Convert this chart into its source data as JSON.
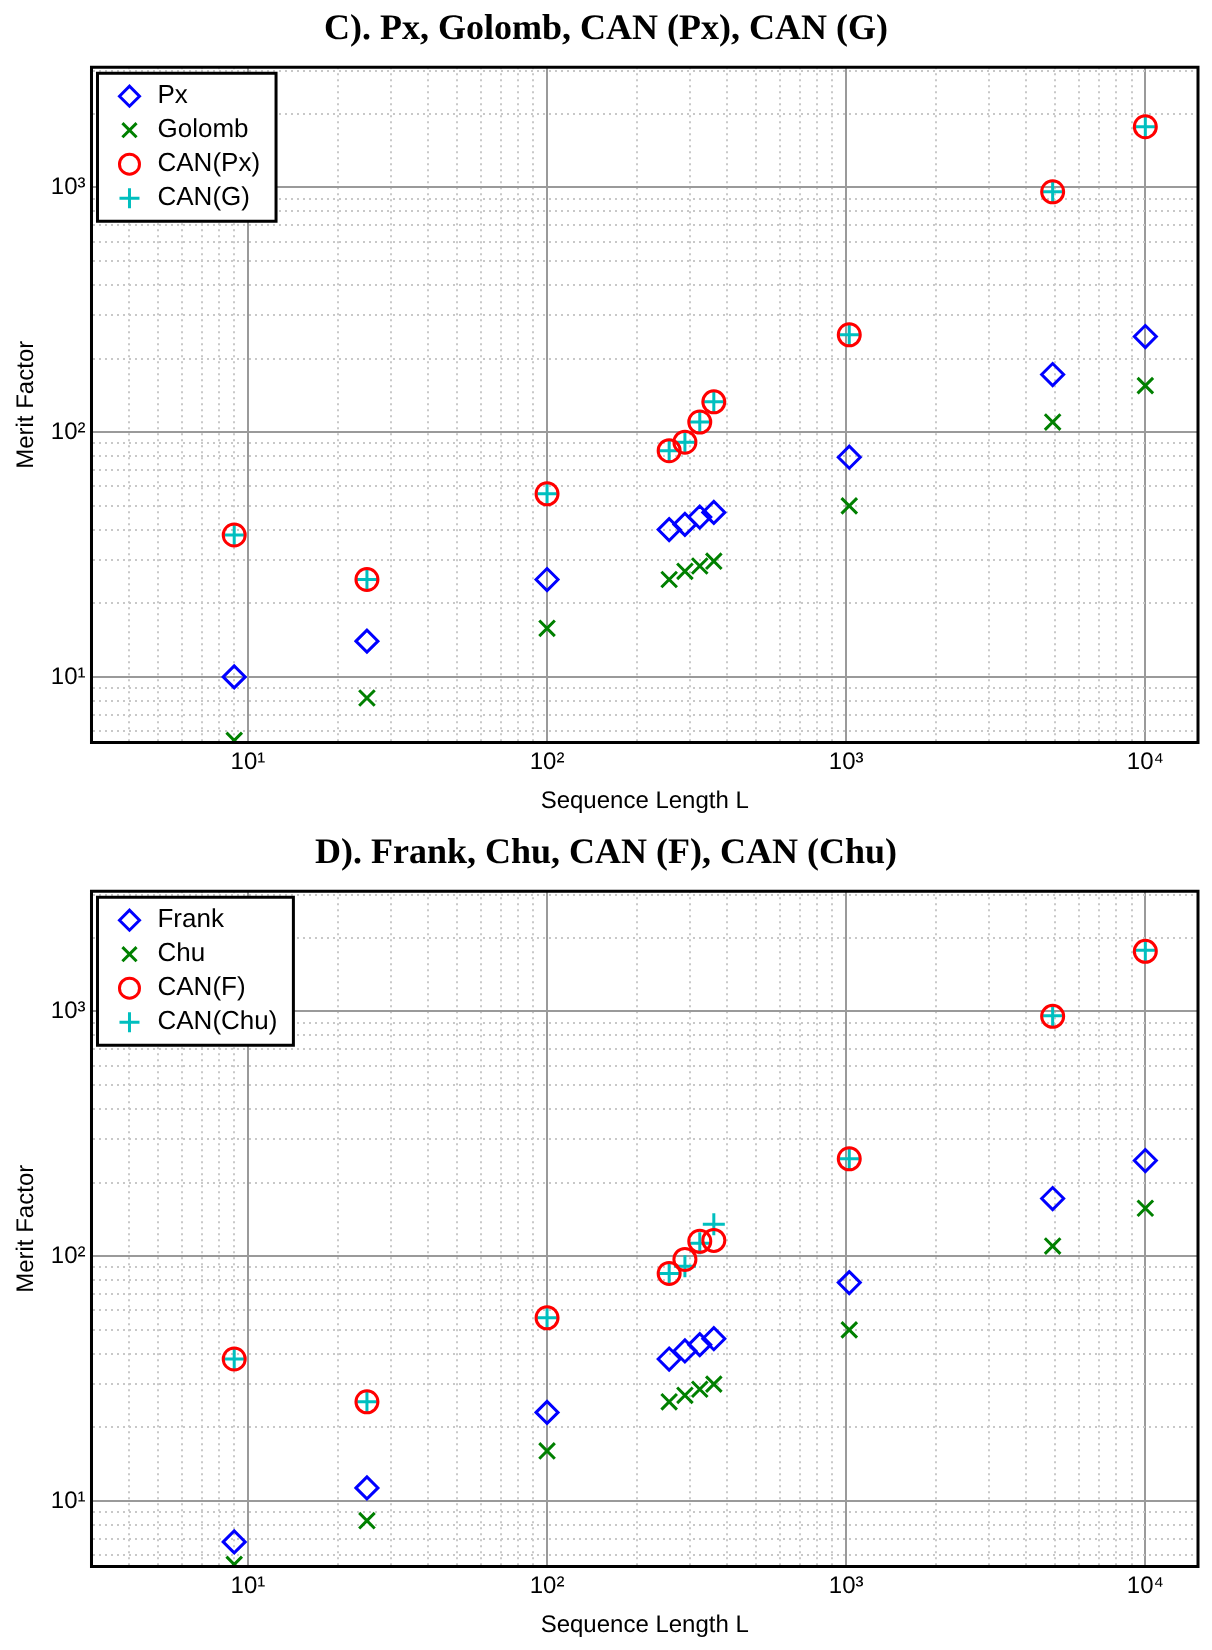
{
  "chart_data": [
    {
      "type": "scatter",
      "title": "C). Px, Golomb, CAN (Px), CAN (G)",
      "xlabel": "Sequence Length L",
      "ylabel": "Merit Factor",
      "log": "xy",
      "grid": true,
      "legend": "top left",
      "x": [
        9,
        25,
        100,
        256,
        289,
        324,
        361,
        1024,
        4900,
        10000
      ],
      "xlim": [
        3,
        15000
      ],
      "xticks": [
        {
          "value": 4,
          "label": null
        },
        {
          "value": 5,
          "label": null
        },
        {
          "value": 6,
          "label": null
        },
        {
          "value": 7,
          "label": null
        },
        {
          "value": 8,
          "label": null
        },
        {
          "value": 9,
          "label": null
        },
        {
          "value": 10,
          "label": "10¹"
        },
        {
          "value": 20,
          "label": null
        },
        {
          "value": 30,
          "label": null
        },
        {
          "value": 40,
          "label": null
        },
        {
          "value": 50,
          "label": null
        },
        {
          "value": 60,
          "label": null
        },
        {
          "value": 70,
          "label": null
        },
        {
          "value": 80,
          "label": null
        },
        {
          "value": 90,
          "label": null
        },
        {
          "value": 100,
          "label": "10²"
        },
        {
          "value": 200,
          "label": null
        },
        {
          "value": 300,
          "label": null
        },
        {
          "value": 400,
          "label": null
        },
        {
          "value": 500,
          "label": null
        },
        {
          "value": 600,
          "label": null
        },
        {
          "value": 700,
          "label": null
        },
        {
          "value": 800,
          "label": null
        },
        {
          "value": 900,
          "label": null
        },
        {
          "value": 1000,
          "label": "10³"
        },
        {
          "value": 2000,
          "label": null
        },
        {
          "value": 3000,
          "label": null
        },
        {
          "value": 4000,
          "label": null
        },
        {
          "value": 5000,
          "label": null
        },
        {
          "value": 6000,
          "label": null
        },
        {
          "value": 7000,
          "label": null
        },
        {
          "value": 8000,
          "label": null
        },
        {
          "value": 9000,
          "label": null
        },
        {
          "value": 10000,
          "label": "10⁴"
        }
      ],
      "ylim": [
        5.4,
        3100
      ],
      "yticks": [
        {
          "value": 6,
          "label": null
        },
        {
          "value": 7,
          "label": null
        },
        {
          "value": 8,
          "label": null
        },
        {
          "value": 9,
          "label": null
        },
        {
          "value": 10,
          "label": "10¹"
        },
        {
          "value": 20,
          "label": null
        },
        {
          "value": 30,
          "label": null
        },
        {
          "value": 40,
          "label": null
        },
        {
          "value": 50,
          "label": null
        },
        {
          "value": 60,
          "label": null
        },
        {
          "value": 70,
          "label": null
        },
        {
          "value": 80,
          "label": null
        },
        {
          "value": 90,
          "label": null
        },
        {
          "value": 100,
          "label": "10²"
        },
        {
          "value": 200,
          "label": null
        },
        {
          "value": 300,
          "label": null
        },
        {
          "value": 400,
          "label": null
        },
        {
          "value": 500,
          "label": null
        },
        {
          "value": 600,
          "label": null
        },
        {
          "value": 700,
          "label": null
        },
        {
          "value": 800,
          "label": null
        },
        {
          "value": 900,
          "label": null
        },
        {
          "value": 1000,
          "label": "10³"
        },
        {
          "value": 2000,
          "label": null
        },
        {
          "value": 3000,
          "label": null
        }
      ],
      "series": [
        {
          "name": "Px",
          "color": "#0000ff",
          "marker": "diamond",
          "values": [
            10,
            14,
            25,
            40,
            42,
            45,
            47,
            79,
            172,
            246
          ]
        },
        {
          "name": "Golomb",
          "color": "#008000",
          "marker": "x",
          "values": [
            5.5,
            8.2,
            15.8,
            25,
            27,
            28.4,
            29.7,
            50,
            110,
            155
          ]
        },
        {
          "name": "CAN(Px)",
          "color": "#ff0000",
          "marker": "circle",
          "values": [
            38,
            25,
            56,
            84,
            91,
            110,
            133,
            250,
            960,
            1770
          ]
        },
        {
          "name": "CAN(G)",
          "color": "#00bfbf",
          "marker": "cross",
          "values": [
            38,
            25,
            56,
            84,
            91,
            110,
            133,
            250,
            960,
            1770
          ]
        }
      ]
    },
    {
      "type": "scatter",
      "title": "D). Frank, Chu, CAN (F), CAN (Chu)",
      "xlabel": "Sequence Length L",
      "ylabel": "Merit Factor",
      "log": "xy",
      "grid": true,
      "legend": "top left",
      "x": [
        9,
        25,
        100,
        256,
        289,
        324,
        361,
        1024,
        4900,
        10000
      ],
      "xlim": [
        3,
        15000
      ],
      "xticks": [
        {
          "value": 4,
          "label": null
        },
        {
          "value": 5,
          "label": null
        },
        {
          "value": 6,
          "label": null
        },
        {
          "value": 7,
          "label": null
        },
        {
          "value": 8,
          "label": null
        },
        {
          "value": 9,
          "label": null
        },
        {
          "value": 10,
          "label": "10¹"
        },
        {
          "value": 20,
          "label": null
        },
        {
          "value": 30,
          "label": null
        },
        {
          "value": 40,
          "label": null
        },
        {
          "value": 50,
          "label": null
        },
        {
          "value": 60,
          "label": null
        },
        {
          "value": 70,
          "label": null
        },
        {
          "value": 80,
          "label": null
        },
        {
          "value": 90,
          "label": null
        },
        {
          "value": 100,
          "label": "10²"
        },
        {
          "value": 200,
          "label": null
        },
        {
          "value": 300,
          "label": null
        },
        {
          "value": 400,
          "label": null
        },
        {
          "value": 500,
          "label": null
        },
        {
          "value": 600,
          "label": null
        },
        {
          "value": 700,
          "label": null
        },
        {
          "value": 800,
          "label": null
        },
        {
          "value": 900,
          "label": null
        },
        {
          "value": 1000,
          "label": "10³"
        },
        {
          "value": 2000,
          "label": null
        },
        {
          "value": 3000,
          "label": null
        },
        {
          "value": 4000,
          "label": null
        },
        {
          "value": 5000,
          "label": null
        },
        {
          "value": 6000,
          "label": null
        },
        {
          "value": 7000,
          "label": null
        },
        {
          "value": 8000,
          "label": null
        },
        {
          "value": 9000,
          "label": null
        },
        {
          "value": 10000,
          "label": "10⁴"
        }
      ],
      "ylim": [
        5.4,
        3100
      ],
      "yticks": [
        {
          "value": 6,
          "label": null
        },
        {
          "value": 7,
          "label": null
        },
        {
          "value": 8,
          "label": null
        },
        {
          "value": 9,
          "label": null
        },
        {
          "value": 10,
          "label": "10¹"
        },
        {
          "value": 20,
          "label": null
        },
        {
          "value": 30,
          "label": null
        },
        {
          "value": 40,
          "label": null
        },
        {
          "value": 50,
          "label": null
        },
        {
          "value": 60,
          "label": null
        },
        {
          "value": 70,
          "label": null
        },
        {
          "value": 80,
          "label": null
        },
        {
          "value": 90,
          "label": null
        },
        {
          "value": 100,
          "label": "10²"
        },
        {
          "value": 200,
          "label": null
        },
        {
          "value": 300,
          "label": null
        },
        {
          "value": 400,
          "label": null
        },
        {
          "value": 500,
          "label": null
        },
        {
          "value": 600,
          "label": null
        },
        {
          "value": 700,
          "label": null
        },
        {
          "value": 800,
          "label": null
        },
        {
          "value": 900,
          "label": null
        },
        {
          "value": 1000,
          "label": "10³"
        },
        {
          "value": 2000,
          "label": null
        },
        {
          "value": 3000,
          "label": null
        }
      ],
      "series": [
        {
          "name": "Frank",
          "color": "#0000ff",
          "marker": "diamond",
          "values": [
            6.8,
            11.3,
            23,
            38,
            41,
            43.5,
            46,
            78,
            172,
            246
          ]
        },
        {
          "name": "Chu",
          "color": "#008000",
          "marker": "x",
          "values": [
            5.5,
            8.3,
            16,
            25.4,
            27,
            28.6,
            30,
            50,
            110,
            157
          ]
        },
        {
          "name": "CAN(F)",
          "color": "#ff0000",
          "marker": "circle",
          "values": [
            38,
            25.4,
            56,
            85,
            97,
            115,
            116,
            250,
            955,
            1760
          ]
        },
        {
          "name": "CAN(Chu)",
          "color": "#00bfbf",
          "marker": "cross",
          "values": [
            38,
            25.4,
            56,
            85,
            91,
            113,
            135,
            250,
            960,
            1780
          ]
        }
      ]
    }
  ]
}
